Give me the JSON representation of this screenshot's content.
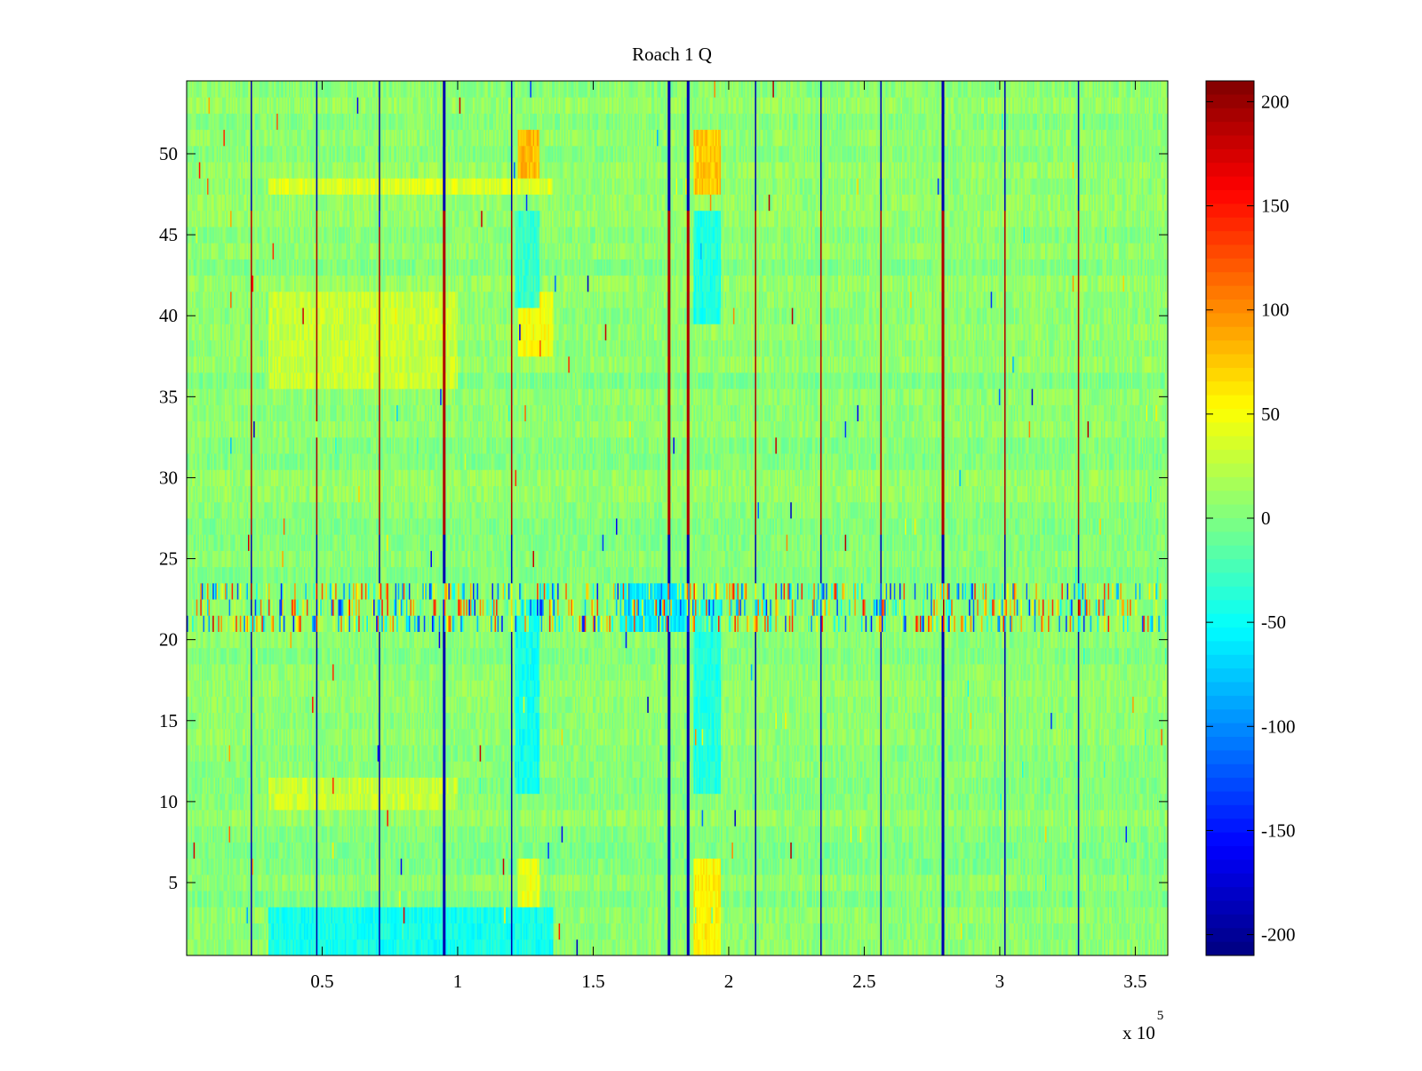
{
  "chart_data": {
    "type": "heatmap",
    "title": "Roach 1 Q",
    "xlabel": "",
    "ylabel": "",
    "x_multiplier_label": "x 10",
    "x_multiplier_exponent": "5",
    "xlim": [
      0,
      3.62
    ],
    "ylim": [
      0.5,
      54.5
    ],
    "rows": 54,
    "columns": 720,
    "x_ticks": [
      {
        "value": 0.5,
        "label": "0.5"
      },
      {
        "value": 1,
        "label": "1"
      },
      {
        "value": 1.5,
        "label": "1.5"
      },
      {
        "value": 2,
        "label": "2"
      },
      {
        "value": 2.5,
        "label": "2.5"
      },
      {
        "value": 3,
        "label": "3"
      },
      {
        "value": 3.5,
        "label": "3.5"
      }
    ],
    "y_ticks": [
      {
        "value": 5,
        "label": "5"
      },
      {
        "value": 10,
        "label": "10"
      },
      {
        "value": 15,
        "label": "15"
      },
      {
        "value": 20,
        "label": "20"
      },
      {
        "value": 25,
        "label": "25"
      },
      {
        "value": 30,
        "label": "30"
      },
      {
        "value": 35,
        "label": "35"
      },
      {
        "value": 40,
        "label": "40"
      },
      {
        "value": 45,
        "label": "45"
      },
      {
        "value": 50,
        "label": "50"
      }
    ],
    "colorbar": {
      "colormap": "jet",
      "range": [
        -210,
        210
      ],
      "ticks": [
        {
          "value": 200,
          "label": "200"
        },
        {
          "value": 150,
          "label": "150"
        },
        {
          "value": 100,
          "label": "100"
        },
        {
          "value": 50,
          "label": "50"
        },
        {
          "value": 0,
          "label": "0"
        },
        {
          "value": -50,
          "label": "-50"
        },
        {
          "value": -100,
          "label": "-100"
        },
        {
          "value": -150,
          "label": "-150"
        },
        {
          "value": -200,
          "label": "-200"
        }
      ]
    },
    "background_value": 5,
    "noise_amplitude": 14,
    "spike_columns_x": [
      0.24,
      0.48,
      0.71,
      0.95,
      1.2,
      1.78,
      1.85,
      2.1,
      2.34,
      2.56,
      2.79,
      3.02,
      3.29
    ],
    "spike_value_upper": 190,
    "spike_value_lower": -190,
    "noisy_band_rows": [
      21,
      22,
      23
    ],
    "noisy_band_amplitude": 150,
    "regions": [
      {
        "x": [
          1.22,
          1.3
        ],
        "y": [
          48,
          51
        ],
        "value": 80
      },
      {
        "x": [
          1.87,
          1.97
        ],
        "y": [
          48,
          51
        ],
        "value": 75
      },
      {
        "x": [
          1.22,
          1.35
        ],
        "y": [
          38,
          41
        ],
        "value": 50
      },
      {
        "x": [
          1.21,
          1.3
        ],
        "y": [
          11,
          22
        ],
        "value": -45
      },
      {
        "x": [
          1.87,
          1.97
        ],
        "y": [
          11,
          22
        ],
        "value": -40
      },
      {
        "x": [
          1.87,
          1.97
        ],
        "y": [
          40,
          46
        ],
        "value": -40
      },
      {
        "x": [
          1.21,
          1.3
        ],
        "y": [
          41,
          46
        ],
        "value": -30
      },
      {
        "x": [
          0.3,
          1.35
        ],
        "y": [
          1,
          3
        ],
        "value": -45
      },
      {
        "x": [
          0.3,
          1.35
        ],
        "y": [
          47.5,
          48.5
        ],
        "value": 40
      },
      {
        "x": [
          0.3,
          1.0
        ],
        "y": [
          36,
          41
        ],
        "value": 30
      },
      {
        "x": [
          0.3,
          1.0
        ],
        "y": [
          10,
          11.5
        ],
        "value": 30
      },
      {
        "x": [
          1.6,
          1.85
        ],
        "y": [
          21,
          23
        ],
        "value": -60
      },
      {
        "x": [
          1.22,
          1.3
        ],
        "y": [
          4,
          6
        ],
        "value": 45
      },
      {
        "x": [
          1.87,
          1.97
        ],
        "y": [
          1,
          6
        ],
        "value": 55
      }
    ]
  }
}
